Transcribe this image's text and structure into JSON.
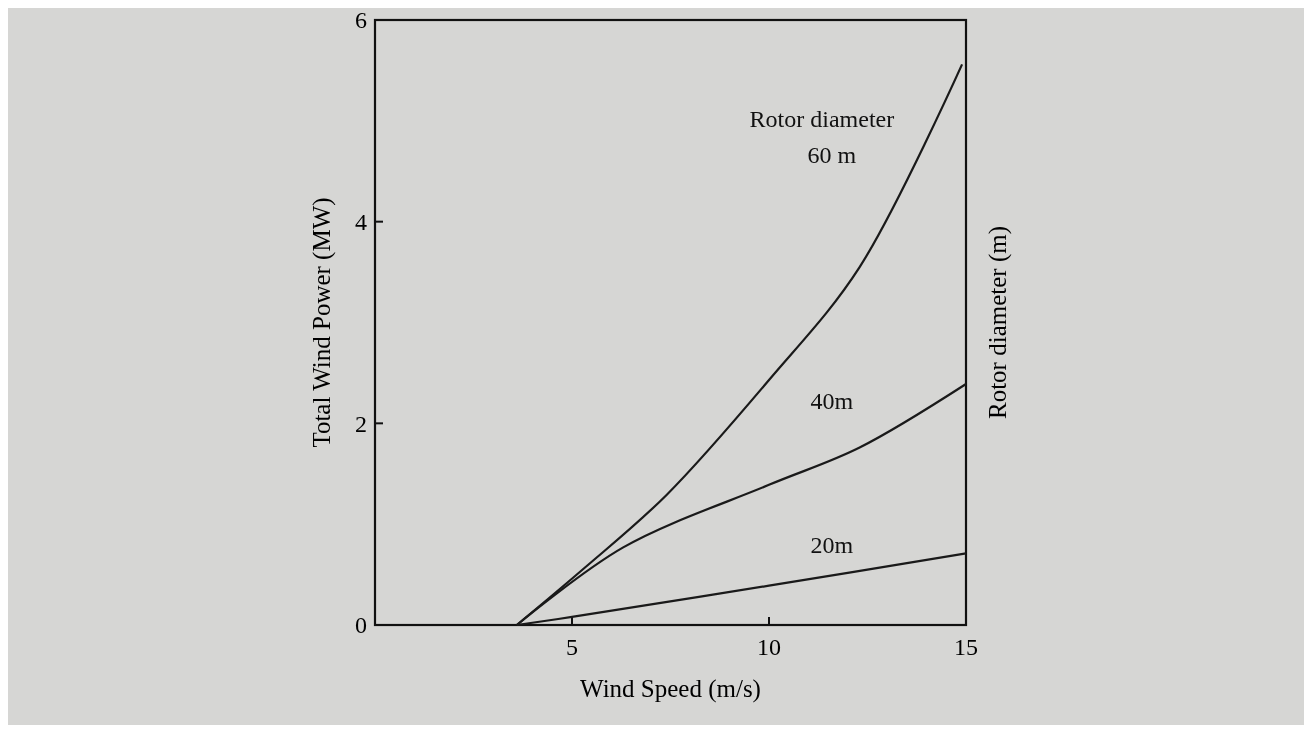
{
  "chart_data": {
    "type": "line",
    "xlabel": "Wind Speed (m/s)",
    "ylabel": "Total Wind Power (MW)",
    "y2label": "Rotor diameter (m)",
    "xlim": [
      0,
      15
    ],
    "xticks": [
      5,
      10,
      15
    ],
    "ylim": [
      0,
      6
    ],
    "yticks": [
      0,
      2,
      4,
      6
    ],
    "grid": false,
    "annotations": [
      "Rotor diameter"
    ],
    "series": [
      {
        "name": "60 m",
        "color": "#1a1a1a",
        "x": [
          3.6,
          5.3,
          7.4,
          10,
          12.3,
          14.9
        ],
        "values": [
          0,
          0.56,
          1.29,
          2.43,
          3.55,
          5.56
        ]
      },
      {
        "name": "40m",
        "color": "#1a1a1a",
        "x": [
          3.6,
          6.3,
          10,
          12.3,
          15
        ],
        "values": [
          0,
          0.77,
          1.39,
          1.76,
          2.39
        ]
      },
      {
        "name": "20m",
        "color": "#1a1a1a",
        "x": [
          3.6,
          5,
          10,
          15
        ],
        "values": [
          0,
          0.08,
          0.39,
          0.71
        ]
      }
    ]
  }
}
